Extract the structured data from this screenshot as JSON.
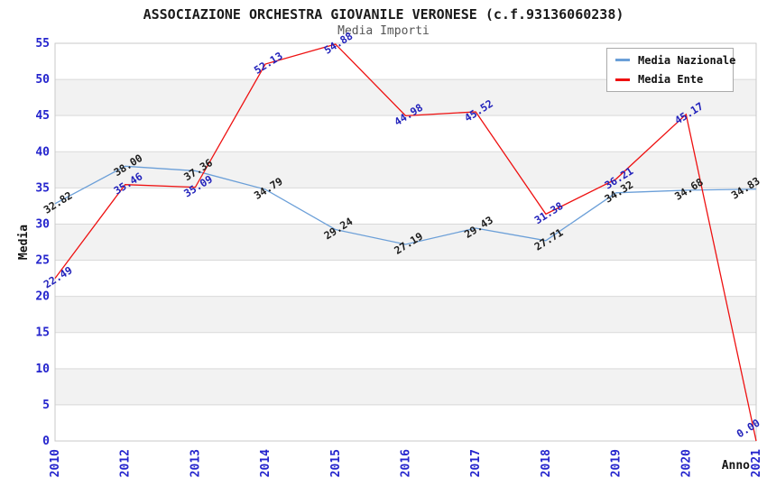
{
  "chart_data": {
    "type": "line",
    "title": "ASSOCIAZIONE ORCHESTRA GIOVANILE VERONESE (c.f.93136060238)",
    "subtitle": "Media Importi",
    "xlabel": "Anno",
    "ylabel": "Media",
    "categories": [
      "2010",
      "2012",
      "2013",
      "2014",
      "2015",
      "2016",
      "2017",
      "2018",
      "2019",
      "2020",
      "2021"
    ],
    "series": [
      {
        "name": "Media Nazionale",
        "color": "#6b9fd8",
        "label_color": "#1c1c1c",
        "values": [
          32.82,
          38.0,
          37.36,
          34.79,
          29.24,
          27.19,
          29.43,
          27.71,
          34.32,
          34.68,
          34.83
        ]
      },
      {
        "name": "Media Ente",
        "color": "#ee1111",
        "label_color": "#2222bb",
        "values": [
          22.49,
          35.46,
          35.09,
          52.13,
          54.88,
          44.98,
          45.52,
          31.38,
          36.21,
          45.17,
          0.0
        ]
      }
    ],
    "ylim": [
      0,
      55
    ],
    "ytick_step": 5,
    "grid": true,
    "legend_position": "top-right",
    "band_colors": [
      "#ffffff",
      "#f2f2f2"
    ],
    "gridline_color": "#d9d9d9",
    "plot_border_color": "#c9c9c9",
    "tick_label_color": "#2424cd"
  }
}
